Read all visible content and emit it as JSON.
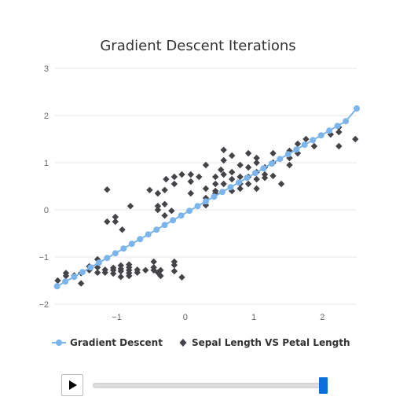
{
  "chart_data": {
    "type": "scatter",
    "title": "Gradient Descent Iterations",
    "xlabel": "",
    "ylabel": "",
    "xlim": [
      -1.9,
      2.5
    ],
    "ylim": [
      -2,
      3
    ],
    "x_ticks": [
      -1,
      0,
      1,
      2
    ],
    "x_tick_labels": [
      "−1",
      "0",
      "1",
      "2"
    ],
    "y_ticks": [
      -2,
      -1,
      0,
      1,
      2,
      3
    ],
    "y_tick_labels": [
      "−2",
      "−1",
      "0",
      "1",
      "2",
      "3"
    ],
    "grid": "horizontal",
    "legend_position": "bottom",
    "series": [
      {
        "name": "Gradient Descent",
        "kind": "line-with-markers",
        "color": "#7cb5ec",
        "x": [
          -1.87,
          -1.75,
          -1.62,
          -1.5,
          -1.38,
          -1.26,
          -1.14,
          -1.02,
          -0.9,
          -0.78,
          -0.66,
          -0.54,
          -0.42,
          -0.3,
          -0.18,
          -0.06,
          0.06,
          0.18,
          0.3,
          0.42,
          0.54,
          0.66,
          0.78,
          0.9,
          1.02,
          1.14,
          1.26,
          1.38,
          1.5,
          1.62,
          1.74,
          1.86,
          1.98,
          2.1,
          2.22,
          2.34,
          2.5
        ],
        "y": [
          -1.62,
          -1.52,
          -1.42,
          -1.32,
          -1.22,
          -1.12,
          -1.02,
          -0.92,
          -0.82,
          -0.72,
          -0.62,
          -0.52,
          -0.42,
          -0.32,
          -0.22,
          -0.12,
          -0.02,
          0.08,
          0.18,
          0.28,
          0.38,
          0.48,
          0.58,
          0.68,
          0.78,
          0.88,
          0.98,
          1.08,
          1.18,
          1.28,
          1.38,
          1.48,
          1.58,
          1.68,
          1.78,
          1.88,
          2.15
        ]
      },
      {
        "name": "Sepal Length VS Petal Length",
        "kind": "scatter",
        "color": "#434348",
        "points": [
          [
            -1.86,
            -1.5
          ],
          [
            -1.74,
            -1.34
          ],
          [
            -1.74,
            -1.4
          ],
          [
            -1.62,
            -1.39
          ],
          [
            -1.52,
            -1.34
          ],
          [
            -1.52,
            -1.56
          ],
          [
            -1.4,
            -1.28
          ],
          [
            -1.4,
            -1.2
          ],
          [
            -1.28,
            -1.33
          ],
          [
            -1.28,
            -1.22
          ],
          [
            -1.28,
            -1.05
          ],
          [
            -1.17,
            -1.27
          ],
          [
            -1.17,
            -1.33
          ],
          [
            -1.05,
            -1.28
          ],
          [
            -1.05,
            -1.23
          ],
          [
            -1.05,
            -1.35
          ],
          [
            -0.94,
            -1.3
          ],
          [
            -0.94,
            -1.18
          ],
          [
            -0.94,
            -1.42
          ],
          [
            -0.94,
            -1.25
          ],
          [
            -0.82,
            -1.28
          ],
          [
            -0.82,
            -1.16
          ],
          [
            -0.82,
            -1.34
          ],
          [
            -0.82,
            -1.4
          ],
          [
            -0.82,
            -1.22
          ],
          [
            -0.7,
            -1.27
          ],
          [
            -0.7,
            -1.33
          ],
          [
            -0.58,
            -1.28
          ],
          [
            -0.46,
            -1.22
          ],
          [
            -0.46,
            -1.1
          ],
          [
            -0.46,
            -1.28
          ],
          [
            -0.4,
            -1.33
          ],
          [
            -0.36,
            -1.4
          ],
          [
            -0.36,
            -1.28
          ],
          [
            -0.16,
            -1.17
          ],
          [
            -0.16,
            -1.3
          ],
          [
            -0.16,
            -1.1
          ],
          [
            -0.05,
            -1.43
          ],
          [
            -1.14,
            0.43
          ],
          [
            -1.14,
            -0.25
          ],
          [
            -1.02,
            -0.15
          ],
          [
            -1.02,
            -0.25
          ],
          [
            -0.92,
            -0.42
          ],
          [
            -0.8,
            0.08
          ],
          [
            -0.52,
            0.42
          ],
          [
            -0.4,
            0.0
          ],
          [
            -0.4,
            0.08
          ],
          [
            -0.4,
            0.35
          ],
          [
            -0.3,
            -0.12
          ],
          [
            -0.3,
            0.12
          ],
          [
            -0.28,
            0.65
          ],
          [
            -0.3,
            0.42
          ],
          [
            -0.2,
            -0.02
          ],
          [
            -0.16,
            0.7
          ],
          [
            -0.16,
            0.55
          ],
          [
            -0.05,
            0.75
          ],
          [
            0.08,
            0.35
          ],
          [
            0.08,
            0.75
          ],
          [
            0.08,
            0.6
          ],
          [
            0.2,
            0.7
          ],
          [
            0.3,
            0.95
          ],
          [
            0.3,
            0.45
          ],
          [
            0.3,
            0.25
          ],
          [
            0.3,
            0.1
          ],
          [
            0.44,
            0.7
          ],
          [
            0.44,
            0.55
          ],
          [
            0.44,
            0.35
          ],
          [
            0.44,
            0.4
          ],
          [
            0.52,
            0.85
          ],
          [
            0.56,
            1.27
          ],
          [
            0.56,
            1.05
          ],
          [
            0.56,
            0.75
          ],
          [
            0.56,
            0.55
          ],
          [
            0.68,
            1.15
          ],
          [
            0.68,
            0.8
          ],
          [
            0.68,
            0.65
          ],
          [
            0.68,
            0.4
          ],
          [
            0.8,
            0.95
          ],
          [
            0.8,
            0.7
          ],
          [
            0.8,
            0.55
          ],
          [
            0.8,
            0.45
          ],
          [
            0.92,
            1.2
          ],
          [
            0.92,
            0.9
          ],
          [
            0.92,
            0.7
          ],
          [
            0.92,
            0.55
          ],
          [
            1.04,
            1.1
          ],
          [
            1.04,
            1.0
          ],
          [
            1.04,
            0.8
          ],
          [
            1.04,
            0.65
          ],
          [
            1.04,
            0.45
          ],
          [
            1.16,
            0.9
          ],
          [
            1.16,
            0.68
          ],
          [
            1.16,
            0.75
          ],
          [
            1.28,
            1.2
          ],
          [
            1.28,
            1.0
          ],
          [
            1.28,
            0.72
          ],
          [
            1.4,
            0.55
          ],
          [
            1.52,
            1.25
          ],
          [
            1.52,
            1.1
          ],
          [
            1.52,
            0.95
          ],
          [
            1.64,
            1.4
          ],
          [
            1.64,
            1.2
          ],
          [
            1.76,
            1.5
          ],
          [
            1.88,
            1.35
          ],
          [
            2.12,
            1.6
          ],
          [
            2.24,
            1.75
          ],
          [
            2.24,
            1.65
          ],
          [
            2.24,
            1.35
          ],
          [
            2.48,
            1.5
          ]
        ]
      }
    ]
  },
  "controls": {
    "play_icon": "play-icon",
    "slider_value": 1.0
  }
}
